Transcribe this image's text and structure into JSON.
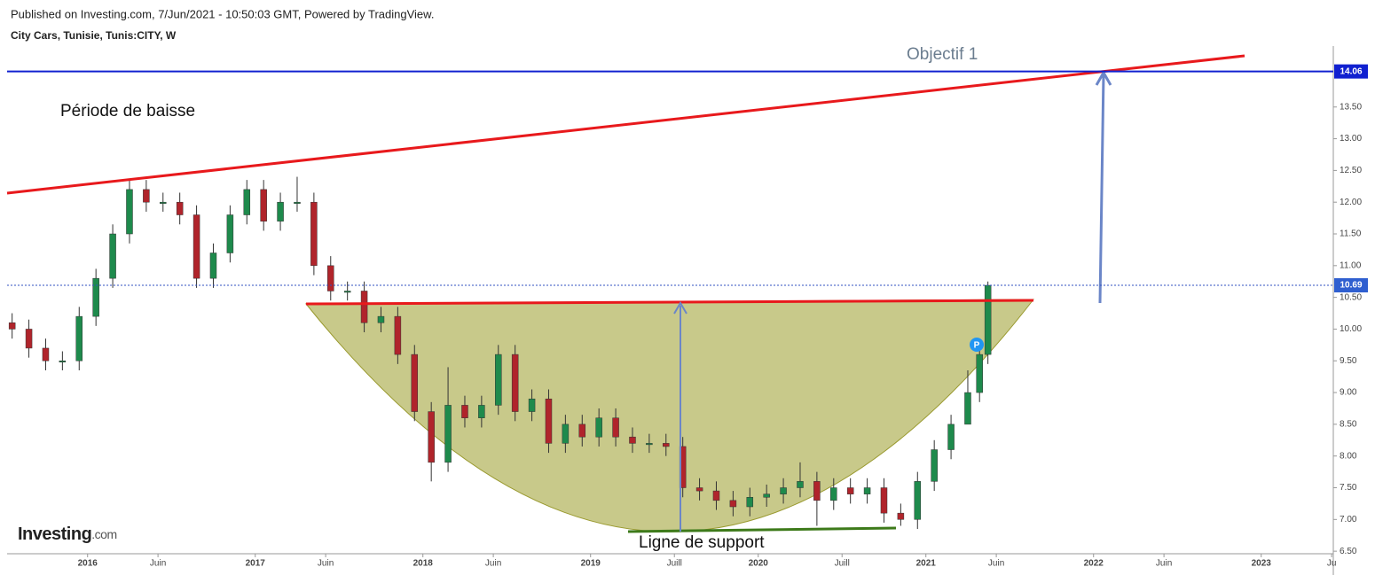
{
  "chart_data": {
    "type": "candlestick",
    "subtitle": "Published on Investing.com, 7/Jun/2021 - 10:50:03 GMT, Powered by TradingView.",
    "title": "City Cars, Tunisie, Tunis:CITY, W",
    "logo": {
      "name": "Investing",
      "suffix": ".com"
    },
    "annotations": {
      "trend": "Période de baisse",
      "target": "Objectif 1",
      "support": "Ligne de support"
    },
    "price_levels": [
      14.06,
      10.69
    ],
    "up_color": "#1e8a4c",
    "down_color": "#b0242b",
    "xlim": [
      2015.52,
      2023.43
    ],
    "xticks": [
      {
        "value": 2016,
        "label": "2016"
      },
      {
        "value": 2016.42,
        "label": "Juin"
      },
      {
        "value": 2017,
        "label": "2017"
      },
      {
        "value": 2017.42,
        "label": "Juin"
      },
      {
        "value": 2018,
        "label": "2018"
      },
      {
        "value": 2018.42,
        "label": "Juin"
      },
      {
        "value": 2019,
        "label": "2019"
      },
      {
        "value": 2019.5,
        "label": "Juill"
      },
      {
        "value": 2020,
        "label": "2020"
      },
      {
        "value": 2020.5,
        "label": "Juill"
      },
      {
        "value": 2021,
        "label": "2021"
      },
      {
        "value": 2021.42,
        "label": "Juin"
      },
      {
        "value": 2022,
        "label": "2022"
      },
      {
        "value": 2022.42,
        "label": "Juin"
      },
      {
        "value": 2023,
        "label": "2023"
      },
      {
        "value": 2023.42,
        "label": "Ju"
      }
    ],
    "ylim": [
      6.46,
      14.46
    ],
    "yticks": [
      {
        "value": 6.5,
        "label": "6.50"
      },
      {
        "value": 7,
        "label": "7.00"
      },
      {
        "value": 7.5,
        "label": "7.50"
      },
      {
        "value": 8,
        "label": "8.00"
      },
      {
        "value": 8.5,
        "label": "8.50"
      },
      {
        "value": 9,
        "label": "9.00"
      },
      {
        "value": 9.5,
        "label": "9.50"
      },
      {
        "value": 10,
        "label": "10.00"
      },
      {
        "value": 10.5,
        "label": "10.50"
      },
      {
        "value": 11,
        "label": "11.00"
      },
      {
        "value": 11.5,
        "label": "11.50"
      },
      {
        "value": 12,
        "label": "12.00"
      },
      {
        "value": 12.5,
        "label": "12.50"
      },
      {
        "value": 13,
        "label": "13.00"
      },
      {
        "value": 13.5,
        "label": "13.50"
      }
    ],
    "x": [
      2015.55,
      2015.65,
      2015.75,
      2015.85,
      2015.95,
      2016.05,
      2016.15,
      2016.25,
      2016.35,
      2016.45,
      2016.55,
      2016.65,
      2016.75,
      2016.85,
      2016.95,
      2017.05,
      2017.15,
      2017.25,
      2017.35,
      2017.45,
      2017.55,
      2017.65,
      2017.75,
      2017.85,
      2017.95,
      2018.05,
      2018.15,
      2018.25,
      2018.35,
      2018.45,
      2018.55,
      2018.65,
      2018.75,
      2018.85,
      2018.95,
      2019.05,
      2019.15,
      2019.25,
      2019.35,
      2019.45,
      2019.55,
      2019.65,
      2019.75,
      2019.85,
      2019.95,
      2020.05,
      2020.15,
      2020.25,
      2020.35,
      2020.45,
      2020.55,
      2020.65,
      2020.75,
      2020.85,
      2020.95,
      2021.05,
      2021.15,
      2021.25,
      2021.32,
      2021.37
    ],
    "open": [
      10.1,
      10.0,
      9.7,
      9.5,
      9.5,
      10.2,
      10.8,
      11.5,
      12.2,
      12.0,
      12.0,
      11.8,
      10.8,
      11.2,
      11.8,
      12.2,
      11.7,
      12.0,
      12.0,
      11.0,
      10.6,
      10.6,
      10.1,
      10.2,
      9.6,
      8.7,
      7.9,
      8.8,
      8.6,
      8.8,
      9.6,
      8.7,
      8.9,
      8.2,
      8.5,
      8.3,
      8.6,
      8.3,
      8.2,
      8.2,
      8.15,
      7.5,
      7.45,
      7.3,
      7.2,
      7.35,
      7.4,
      7.5,
      7.6,
      7.3,
      7.5,
      7.4,
      7.5,
      7.1,
      7.0,
      7.6,
      8.1,
      8.5,
      9.0,
      9.6
    ],
    "high": [
      10.25,
      10.15,
      9.85,
      9.65,
      10.35,
      10.95,
      11.65,
      12.35,
      12.35,
      12.15,
      12.15,
      11.95,
      11.35,
      11.95,
      12.35,
      12.35,
      12.15,
      12.4,
      12.15,
      11.15,
      10.75,
      10.75,
      10.35,
      10.35,
      9.75,
      8.85,
      9.4,
      8.95,
      8.95,
      9.75,
      9.75,
      9.05,
      9.05,
      8.65,
      8.65,
      8.75,
      8.75,
      8.45,
      8.35,
      8.35,
      8.3,
      7.65,
      7.6,
      7.45,
      7.5,
      7.55,
      7.65,
      7.9,
      7.75,
      7.65,
      7.65,
      7.65,
      7.65,
      7.25,
      7.75,
      8.25,
      8.65,
      9.35,
      9.75,
      10.75
    ],
    "low": [
      9.85,
      9.55,
      9.35,
      9.35,
      9.35,
      10.05,
      10.65,
      11.35,
      11.85,
      11.85,
      11.65,
      10.65,
      10.65,
      11.05,
      11.65,
      11.55,
      11.55,
      11.85,
      10.85,
      10.45,
      10.45,
      9.95,
      9.95,
      9.45,
      8.55,
      7.6,
      7.75,
      8.45,
      8.45,
      8.65,
      8.55,
      8.55,
      8.05,
      8.05,
      8.15,
      8.15,
      8.15,
      8.05,
      8.05,
      8.0,
      7.35,
      7.3,
      7.15,
      7.05,
      7.05,
      7.2,
      7.25,
      7.35,
      6.9,
      7.15,
      7.25,
      7.25,
      6.95,
      6.9,
      6.85,
      7.45,
      7.95,
      8.55,
      8.85,
      9.45
    ],
    "close": [
      10.0,
      9.7,
      9.5,
      9.5,
      10.2,
      10.8,
      11.5,
      12.2,
      12.0,
      12.0,
      11.8,
      10.8,
      11.2,
      11.8,
      12.2,
      11.7,
      12.0,
      12.0,
      11.0,
      10.6,
      10.6,
      10.1,
      10.2,
      9.6,
      8.7,
      7.9,
      8.8,
      8.6,
      8.8,
      9.6,
      8.7,
      8.9,
      8.2,
      8.5,
      8.3,
      8.6,
      8.3,
      8.2,
      8.2,
      8.15,
      7.5,
      7.45,
      7.3,
      7.2,
      7.35,
      7.4,
      7.5,
      7.6,
      7.3,
      7.5,
      7.4,
      7.5,
      7.1,
      7.0,
      7.6,
      8.1,
      8.5,
      9.0,
      9.6,
      10.69
    ]
  }
}
